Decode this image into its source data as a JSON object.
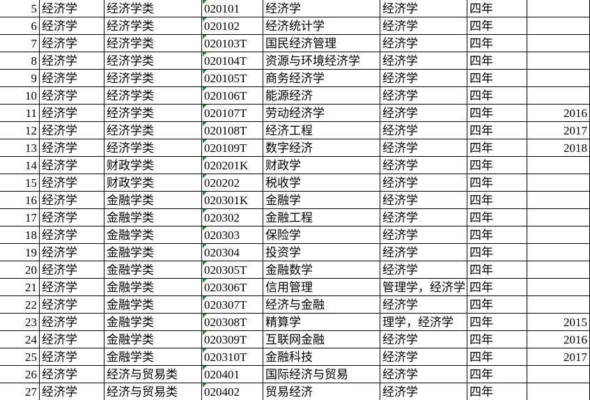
{
  "table": {
    "rows": [
      [
        5,
        "经济学",
        "经济学类",
        "020101",
        "经济学",
        "经济学",
        "四年",
        null
      ],
      [
        6,
        "经济学",
        "经济学类",
        "020102",
        "经济统计学",
        "经济学",
        "四年",
        null
      ],
      [
        7,
        "经济学",
        "经济学类",
        "020103T",
        "国民经济管理",
        "经济学",
        "四年",
        null
      ],
      [
        8,
        "经济学",
        "经济学类",
        "020104T",
        "资源与环境经济学",
        "经济学",
        "四年",
        null
      ],
      [
        9,
        "经济学",
        "经济学类",
        "020105T",
        "商务经济学",
        "经济学",
        "四年",
        null
      ],
      [
        10,
        "经济学",
        "经济学类",
        "020106T",
        "能源经济",
        "经济学",
        "四年",
        null
      ],
      [
        11,
        "经济学",
        "经济学类",
        "020107T",
        "劳动经济学",
        "经济学",
        "四年",
        2016
      ],
      [
        12,
        "经济学",
        "经济学类",
        "020108T",
        "经济工程",
        "经济学",
        "四年",
        2017
      ],
      [
        13,
        "经济学",
        "经济学类",
        "020109T",
        "数字经济",
        "经济学",
        "四年",
        2018
      ],
      [
        14,
        "经济学",
        "财政学类",
        "020201K",
        "财政学",
        "经济学",
        "四年",
        null
      ],
      [
        15,
        "经济学",
        "财政学类",
        "020202",
        "税收学",
        "经济学",
        "四年",
        null
      ],
      [
        16,
        "经济学",
        "金融学类",
        "020301K",
        "金融学",
        "经济学",
        "四年",
        null
      ],
      [
        17,
        "经济学",
        "金融学类",
        "020302",
        "金融工程",
        "经济学",
        "四年",
        null
      ],
      [
        18,
        "经济学",
        "金融学类",
        "020303",
        "保险学",
        "经济学",
        "四年",
        null
      ],
      [
        19,
        "经济学",
        "金融学类",
        "020304",
        "投资学",
        "经济学",
        "四年",
        null
      ],
      [
        20,
        "经济学",
        "金融学类",
        "020305T",
        "金融数学",
        "经济学",
        "四年",
        null
      ],
      [
        21,
        "经济学",
        "金融学类",
        "020306T",
        "信用管理",
        "管理学，经济学",
        "四年",
        null
      ],
      [
        22,
        "经济学",
        "金融学类",
        "020307T",
        "经济与金融",
        "经济学",
        "四年",
        null
      ],
      [
        23,
        "经济学",
        "金融学类",
        "020308T",
        "精算学",
        "理学，经济学",
        "四年",
        2015
      ],
      [
        24,
        "经济学",
        "金融学类",
        "020309T",
        "互联网金融",
        "经济学",
        "四年",
        2016
      ],
      [
        25,
        "经济学",
        "金融学类",
        "020310T",
        "金融科技",
        "经济学",
        "四年",
        2017
      ],
      [
        26,
        "经济学",
        "经济与贸易类",
        "020401",
        "国际经济与贸易",
        "经济学",
        "四年",
        null
      ],
      [
        27,
        "经济学",
        "经济与贸易类",
        "020402",
        "贸易经济",
        "经济学",
        "四年",
        null
      ]
    ]
  }
}
